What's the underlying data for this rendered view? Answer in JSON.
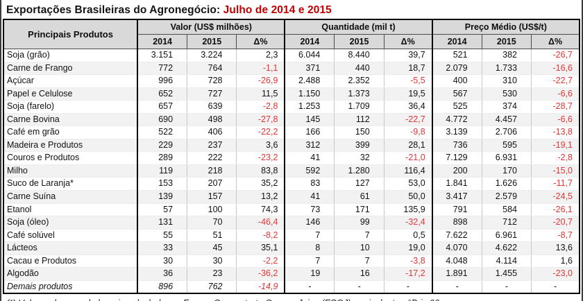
{
  "title": {
    "black": "Exportações Brasileiras do Agronegócio: ",
    "red": "Julho de 2014 e 2015"
  },
  "table": {
    "product_header": "Principais Produtos",
    "groups": [
      {
        "label": "Valor (US$ milhões)"
      },
      {
        "label": "Quantidade (mil t)"
      },
      {
        "label": "Preço Médio (US$/t)"
      }
    ],
    "sub_headers": [
      "2014",
      "2015",
      "Δ%"
    ],
    "rows": [
      {
        "produto": "Soja (grão)",
        "italic": false,
        "cells": [
          "3.151",
          "3.224",
          "2,3",
          "6.044",
          "8.440",
          "39,7",
          "521",
          "382",
          "-26,7"
        ]
      },
      {
        "produto": "Carne de Frango",
        "italic": false,
        "cells": [
          "772",
          "764",
          "-1,1",
          "371",
          "440",
          "18,7",
          "2.079",
          "1.733",
          "-16,6"
        ]
      },
      {
        "produto": "Açúcar",
        "italic": false,
        "cells": [
          "996",
          "728",
          "-26,9",
          "2.488",
          "2.352",
          "-5,5",
          "400",
          "310",
          "-22,7"
        ]
      },
      {
        "produto": "Papel e Celulose",
        "italic": false,
        "cells": [
          "652",
          "727",
          "11,5",
          "1.150",
          "1.373",
          "19,5",
          "567",
          "530",
          "-6,6"
        ]
      },
      {
        "produto": "Soja (farelo)",
        "italic": false,
        "cells": [
          "657",
          "639",
          "-2,8",
          "1.253",
          "1.709",
          "36,4",
          "525",
          "374",
          "-28,7"
        ]
      },
      {
        "produto": "Carne Bovina",
        "italic": false,
        "cells": [
          "690",
          "498",
          "-27,8",
          "145",
          "112",
          "-22,7",
          "4.772",
          "4.457",
          "-6,6"
        ]
      },
      {
        "produto": "Café em grão",
        "italic": false,
        "cells": [
          "522",
          "406",
          "-22,2",
          "166",
          "150",
          "-9,8",
          "3.139",
          "2.706",
          "-13,8"
        ]
      },
      {
        "produto": "Madeira e Produtos",
        "italic": false,
        "cells": [
          "229",
          "237",
          "3,6",
          "312",
          "399",
          "28,1",
          "736",
          "595",
          "-19,1"
        ]
      },
      {
        "produto": "Couros e Produtos",
        "italic": false,
        "cells": [
          "289",
          "222",
          "-23,2",
          "41",
          "32",
          "-21,0",
          "7.129",
          "6.931",
          "-2,8"
        ]
      },
      {
        "produto": "Milho",
        "italic": false,
        "cells": [
          "119",
          "218",
          "83,8",
          "592",
          "1.280",
          "116,4",
          "200",
          "170",
          "-15,0"
        ]
      },
      {
        "produto": "Suco de Laranja*",
        "italic": false,
        "cells": [
          "153",
          "207",
          "35,2",
          "83",
          "127",
          "53,0",
          "1.841",
          "1.626",
          "-11,7"
        ]
      },
      {
        "produto": "Carne Suína",
        "italic": false,
        "cells": [
          "139",
          "157",
          "13,2",
          "41",
          "61",
          "50,0",
          "3.417",
          "2.579",
          "-24,5"
        ]
      },
      {
        "produto": "Etanol",
        "italic": false,
        "cells": [
          "57",
          "100",
          "74,3",
          "73",
          "171",
          "135,9",
          "791",
          "584",
          "-26,1"
        ]
      },
      {
        "produto": "Soja (óleo)",
        "italic": false,
        "cells": [
          "131",
          "70",
          "-46,4",
          "146",
          "99",
          "-32,4",
          "898",
          "712",
          "-20,7"
        ]
      },
      {
        "produto": "Café solúvel",
        "italic": false,
        "cells": [
          "55",
          "51",
          "-8,2",
          "7",
          "7",
          "0,5",
          "7.622",
          "6.961",
          "-8,7"
        ]
      },
      {
        "produto": "Lácteos",
        "italic": false,
        "cells": [
          "33",
          "45",
          "35,1",
          "8",
          "10",
          "19,0",
          "4.070",
          "4.622",
          "13,6"
        ]
      },
      {
        "produto": "Cacau e Produtos",
        "italic": false,
        "cells": [
          "30",
          "30",
          "-2,2",
          "7",
          "7",
          "-3,8",
          "4.048",
          "4.114",
          "1,6"
        ]
      },
      {
        "produto": "Algodão",
        "italic": false,
        "cells": [
          "36",
          "23",
          "-36,2",
          "19",
          "16",
          "-17,2",
          "1.891",
          "1.455",
          "-23,0"
        ]
      },
      {
        "produto": "Demais produtos",
        "italic": true,
        "cells": [
          "896",
          "762",
          "-14,9",
          "-",
          "-",
          "-",
          "-",
          "-",
          "-"
        ]
      }
    ]
  },
  "footnote": "(*) Volume de suco de laranja calculado em Frozen Concentrate Orange Juice (FCOJ) equivalente - °Brix 66.",
  "colors": {
    "title_accent": "#c00000",
    "negative_value": "#e03535",
    "header_background": "#d9d9d9",
    "alt_row_background": "#f2f2f2"
  }
}
